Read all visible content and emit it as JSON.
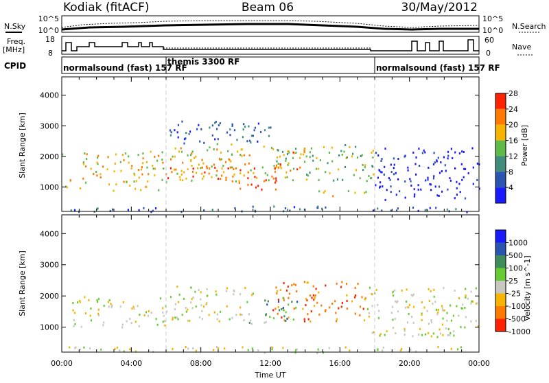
{
  "header": {
    "station": "Kodiak (fitACF)",
    "beam": "Beam 06",
    "date": "30/May/2012"
  },
  "noise_panel": {
    "left_label": "N.Sky",
    "right_label": "N.Search",
    "tick_top": "10^5",
    "tick_bottom": "10^0"
  },
  "freq_panel": {
    "left_label_1": "Freq.",
    "left_label_2": "[MHz]",
    "left_tick_top": "18",
    "left_tick_bottom": "8",
    "right_label": "Nave",
    "right_tick_top": "60",
    "right_tick_bottom": "0"
  },
  "cpid_panel": {
    "label": "CPID",
    "segments": [
      {
        "text": "normalsound (fast) 157 RF",
        "start_hour": 0
      },
      {
        "text": "themis 3300 RF",
        "start_hour": 6
      },
      {
        "text": "normalsound (fast) 157 RF",
        "start_hour": 18
      }
    ]
  },
  "chart_data": [
    {
      "type": "heatmap",
      "quantity": "Power",
      "ylabel": "Slant Range [km]",
      "yticks": [
        1000,
        2000,
        3000,
        4000
      ],
      "ylim": [
        200,
        4600
      ],
      "xlim": [
        0,
        24
      ],
      "colorbar_label": "Power [dB]",
      "colorbar_ticks": [
        "4",
        "8",
        "12",
        "16",
        "20",
        "24",
        "28"
      ],
      "colors": [
        "#1a1aff",
        "#2a55b0",
        "#3f8d7a",
        "#5fba4a",
        "#f6b400",
        "#ff7a00",
        "#ff2200"
      ],
      "bands": [
        {
          "x0": 0.0,
          "x1": 6.0,
          "y0": 900,
          "y1": 2200,
          "level": 4
        },
        {
          "x0": 6.0,
          "x1": 11.0,
          "y0": 1200,
          "y1": 2500,
          "level": 4
        },
        {
          "x0": 6.0,
          "x1": 11.5,
          "y0": 1300,
          "y1": 1800,
          "level": 5
        },
        {
          "x0": 10.0,
          "x1": 12.5,
          "y0": 800,
          "y1": 1400,
          "level": 6
        },
        {
          "x0": 11.5,
          "x1": 18.0,
          "y0": 1200,
          "y1": 2400,
          "level": 3
        },
        {
          "x0": 12.0,
          "x1": 14.0,
          "y0": 1500,
          "y1": 2300,
          "level": 5
        },
        {
          "x0": 14.0,
          "x1": 17.5,
          "y0": 700,
          "y1": 900,
          "level": 4
        },
        {
          "x0": 6.0,
          "x1": 12.0,
          "y0": 2400,
          "y1": 3200,
          "level": 1
        },
        {
          "x0": 0.0,
          "x1": 24.0,
          "y0": 200,
          "y1": 400,
          "level": 1
        },
        {
          "x0": 18.0,
          "x1": 24.0,
          "y0": 600,
          "y1": 2300,
          "level": 0
        }
      ]
    },
    {
      "type": "heatmap",
      "quantity": "Velocity",
      "ylabel": "Slant Range [km]",
      "yticks": [
        1000,
        2000,
        3000,
        4000
      ],
      "ylim": [
        200,
        4600
      ],
      "xlim": [
        0,
        24
      ],
      "xlabel": "Time UT",
      "xticks": [
        "00:00",
        "04:00",
        "08:00",
        "12:00",
        "16:00",
        "20:00",
        "00:00"
      ],
      "colorbar_label": "Velocity [m s^-1]",
      "colorbar_ticks": [
        "1000",
        "500",
        "100",
        "25",
        "-25",
        "-100",
        "-500",
        "-1000"
      ],
      "colors": [
        "#1a1aff",
        "#2a55b0",
        "#3f8d5a",
        "#66cc33",
        "#c8c8c0",
        "#f6b400",
        "#ff7a00",
        "#ff2200"
      ],
      "bands": [
        {
          "x0": 0.5,
          "x1": 6.0,
          "y0": 1000,
          "y1": 2000,
          "level": 4
        },
        {
          "x0": 6.0,
          "x1": 11.0,
          "y0": 1200,
          "y1": 2400,
          "level": 4
        },
        {
          "x0": 10.5,
          "x1": 12.0,
          "y0": 900,
          "y1": 1200,
          "level": 3
        },
        {
          "x0": 12.0,
          "x1": 17.5,
          "y0": 1200,
          "y1": 2500,
          "level": 6
        },
        {
          "x0": 11.5,
          "x1": 13.5,
          "y0": 1200,
          "y1": 2200,
          "level": 2
        },
        {
          "x0": 17.5,
          "x1": 24.0,
          "y0": 700,
          "y1": 2300,
          "level": 4
        },
        {
          "x0": 0.0,
          "x1": 24.0,
          "y0": 200,
          "y1": 400,
          "level": 4
        }
      ]
    }
  ]
}
